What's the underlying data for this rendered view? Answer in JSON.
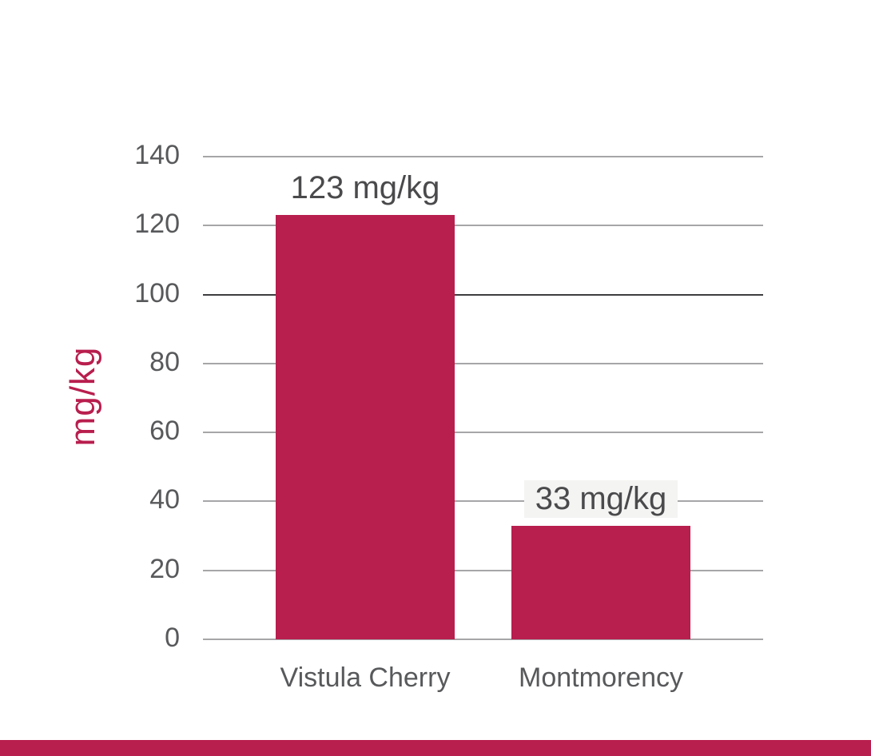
{
  "chart_data": {
    "type": "bar",
    "title": "",
    "categories": [
      "Vistula Cherry",
      "Montmorency"
    ],
    "values": [
      123,
      33
    ],
    "value_labels": [
      "123 mg/kg",
      "33 mg/kg"
    ],
    "ylabel": "mg/kg",
    "yticks": [
      0,
      20,
      40,
      60,
      80,
      100,
      120,
      140
    ],
    "ylim": [
      0,
      140
    ],
    "grid": true,
    "legend": false,
    "darker_gridline": {
      "y": 100,
      "color": "#3d3d3f"
    },
    "colors": {
      "bar": "#b81e4e",
      "ylabel": "#b81e4e",
      "ticks": "#58595b",
      "categories": "#58595b",
      "value_labels": "#4a4a4c",
      "gridline": "#a6a6a8",
      "value_label_box_bg": "#f4f4f3",
      "footer_bar": "#b81e4e",
      "background": "#ffffff"
    }
  }
}
